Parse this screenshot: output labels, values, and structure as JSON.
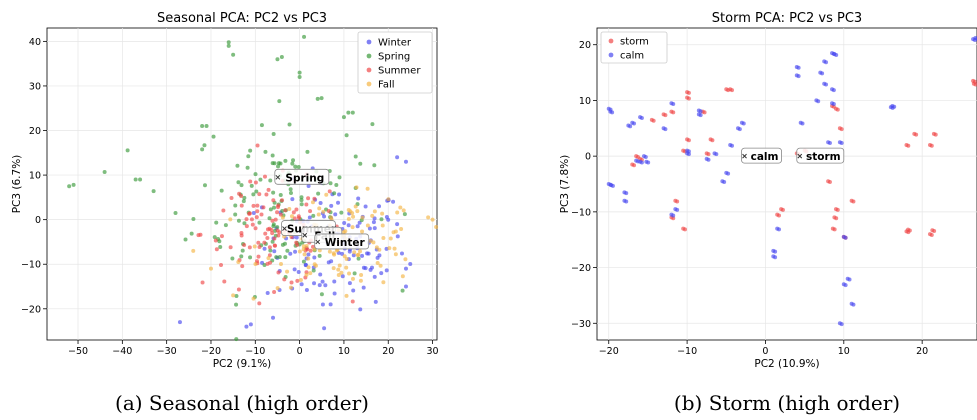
{
  "chart_data": [
    {
      "type": "scatter",
      "title": "Seasonal PCA: PC2 vs PC3",
      "xlabel": "PC2 (9.1%)",
      "ylabel": "PC3 (6.7%)",
      "xlim": [
        -57,
        31
      ],
      "ylim": [
        -27,
        43
      ],
      "xticks": [
        -50,
        -40,
        -30,
        -20,
        -10,
        0,
        10,
        20,
        30
      ],
      "yticks": [
        -20,
        -10,
        0,
        10,
        20,
        30,
        40
      ],
      "grid": true,
      "legend": "top-right",
      "caption": "(a) Seasonal (high order)",
      "series": [
        {
          "name": "Winter",
          "color": "#4a4af0",
          "center": [
            8,
            -6
          ],
          "spread": [
            8,
            7
          ],
          "count": 130,
          "extra": [
            [
              -12,
              -24
            ],
            [
              -11,
              -23.5
            ],
            [
              -27,
              -23
            ],
            [
              7,
              -19
            ],
            [
              24,
              -11
            ],
            [
              24,
              -15
            ],
            [
              22,
              14
            ],
            [
              24,
              13
            ],
            [
              22,
              -1
            ],
            [
              -6,
              -22
            ]
          ]
        },
        {
          "name": "Spring",
          "color": "#3a9a3a",
          "center": [
            -4,
            4
          ],
          "spread": [
            10,
            10
          ],
          "count": 150,
          "extra": [
            [
              -52,
              7.5
            ],
            [
              -51,
              7.8
            ],
            [
              -44,
              10.7
            ],
            [
              -37,
              9
            ],
            [
              -36,
              9
            ],
            [
              -16,
              39
            ],
            [
              -16,
              39.8
            ],
            [
              -15,
              37
            ],
            [
              -5,
              36
            ],
            [
              -4,
              36.5
            ],
            [
              0,
              32
            ],
            [
              0,
              33
            ],
            [
              10,
              23
            ],
            [
              11,
              24
            ],
            [
              12,
              24
            ],
            [
              -21,
              21
            ],
            [
              -22,
              21
            ],
            [
              -28,
              1.5
            ],
            [
              1,
              41
            ]
          ]
        },
        {
          "name": "Summer",
          "color": "#f04848",
          "center": [
            -6,
            -3
          ],
          "spread": [
            8,
            6
          ],
          "count": 120,
          "extra": []
        },
        {
          "name": "Fall",
          "color": "#f5b545",
          "center": [
            10,
            -5
          ],
          "spread": [
            9,
            5
          ],
          "count": 120,
          "extra": [
            [
              29,
              0.5
            ],
            [
              30,
              0
            ],
            [
              -20,
              -11
            ],
            [
              -24,
              -7
            ],
            [
              -15,
              -17
            ]
          ]
        }
      ],
      "annotations": [
        {
          "text": "Spring",
          "x": 0.5,
          "y": 9.5
        },
        {
          "text": "Summer",
          "x": 2,
          "y": -2
        },
        {
          "text": "Fall",
          "x": 5,
          "y": -3.5
        },
        {
          "text": "Winter",
          "x": 9.5,
          "y": -5
        }
      ]
    },
    {
      "type": "scatter",
      "title": "Storm PCA: PC2 vs PC3",
      "xlabel": "PC2 (10.9%)",
      "ylabel": "PC3 (7.8%)",
      "xlim": [
        -21.5,
        27
      ],
      "ylim": [
        -33,
        23
      ],
      "xticks": [
        -20,
        -10,
        0,
        10,
        20
      ],
      "yticks": [
        -30,
        -20,
        -10,
        0,
        10,
        20
      ],
      "grid": true,
      "legend": "top-left",
      "caption": "(b) Storm (high order)",
      "series": [
        {
          "name": "storm",
          "color": "#f04848",
          "points": [
            [
              -16.5,
              0
            ],
            [
              -16,
              -0.5
            ],
            [
              -17,
              -1.5
            ],
            [
              -14.5,
              6.5
            ],
            [
              -13,
              7.5
            ],
            [
              -12,
              8
            ],
            [
              -10,
              11.5
            ],
            [
              -10,
              10.5
            ],
            [
              -8,
              8
            ],
            [
              -7.5,
              0.5
            ],
            [
              -7,
              3
            ],
            [
              -5,
              12
            ],
            [
              -4.5,
              12
            ],
            [
              -10,
              3
            ],
            [
              -10.5,
              1
            ],
            [
              -11.5,
              -8
            ],
            [
              -12,
              -11
            ],
            [
              -10.5,
              -13
            ],
            [
              2,
              -9.5
            ],
            [
              1.5,
              -10.5
            ],
            [
              4,
              0.5
            ],
            [
              5,
              1
            ],
            [
              8.5,
              9
            ],
            [
              9,
              8.5
            ],
            [
              9.5,
              5
            ],
            [
              8,
              -4.5
            ],
            [
              9,
              -9.5
            ],
            [
              10,
              -14.5
            ],
            [
              11,
              -8
            ],
            [
              18,
              2
            ],
            [
              19,
              4
            ],
            [
              21,
              2
            ],
            [
              21.5,
              4
            ],
            [
              18,
              -13.5
            ],
            [
              18.2,
              -13.2
            ],
            [
              21,
              -14
            ],
            [
              21.3,
              -13.3
            ],
            [
              26.5,
              13.5
            ],
            [
              26.6,
              13
            ],
            [
              8.8,
              -11
            ],
            [
              8.6,
              -13
            ]
          ]
        },
        {
          "name": "calm",
          "color": "#4a4af0",
          "points": [
            [
              -20,
              8.5
            ],
            [
              -19.8,
              8
            ],
            [
              -20,
              -5
            ],
            [
              -19.7,
              -5.2
            ],
            [
              -18,
              -6.5
            ],
            [
              -18,
              -8
            ],
            [
              -17.5,
              5.5
            ],
            [
              -17,
              6
            ],
            [
              -16.5,
              -0.8
            ],
            [
              -16,
              -1
            ],
            [
              -15.5,
              0
            ],
            [
              -15.2,
              -1
            ],
            [
              -16,
              7
            ],
            [
              -13,
              5
            ],
            [
              -12,
              9.5
            ],
            [
              -11.5,
              -9.5
            ],
            [
              -12,
              -10.5
            ],
            [
              -10,
              0.5
            ],
            [
              -10,
              1
            ],
            [
              -8.5,
              7.5
            ],
            [
              -8.5,
              8.2
            ],
            [
              -7.5,
              -0.5
            ],
            [
              -6.5,
              0.5
            ],
            [
              -5.5,
              -4.5
            ],
            [
              -5,
              -3
            ],
            [
              -3.5,
              5
            ],
            [
              -3,
              6
            ],
            [
              -4.5,
              2
            ],
            [
              1,
              -17
            ],
            [
              1,
              -18
            ],
            [
              1.5,
              -13
            ],
            [
              4.5,
              6
            ],
            [
              4,
              14.5
            ],
            [
              4,
              16
            ],
            [
              6.5,
              10
            ],
            [
              7,
              15
            ],
            [
              7.5,
              17
            ],
            [
              7.5,
              13
            ],
            [
              8.5,
              18.5
            ],
            [
              8.8,
              18.3
            ],
            [
              8.5,
              12
            ],
            [
              9.5,
              2.5
            ],
            [
              9.5,
              -30
            ],
            [
              10,
              -23
            ],
            [
              10.5,
              -22
            ],
            [
              11,
              -26.5
            ],
            [
              10,
              -14.5
            ],
            [
              8,
              2.5
            ],
            [
              16,
              8.8
            ],
            [
              16.2,
              9
            ],
            [
              26.5,
              21
            ],
            [
              26.8,
              21.2
            ],
            [
              8.5,
              9.5
            ]
          ]
        }
      ],
      "annotations": [
        {
          "text": "calm",
          "x": -0.5,
          "y": 0
        },
        {
          "text": "storm",
          "x": 7,
          "y": 0
        }
      ]
    }
  ]
}
